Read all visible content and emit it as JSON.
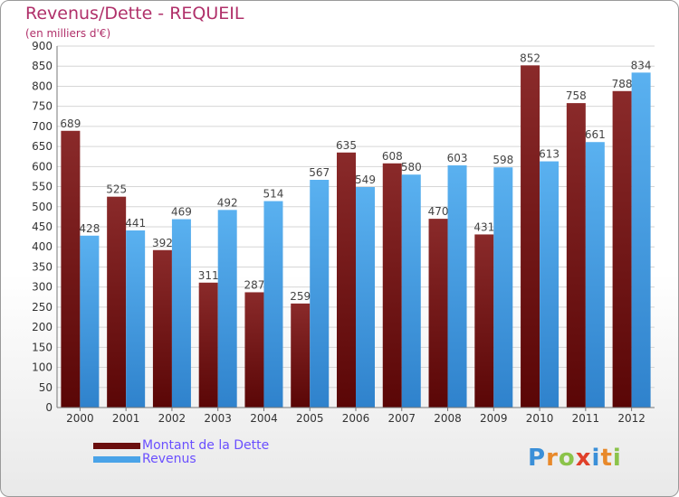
{
  "header": {
    "title": "Revenus/Dette - REQUEIL",
    "subtitle": "(en milliers d'€)"
  },
  "chart_data": {
    "type": "bar",
    "title": "Revenus/Dette - REQUEIL",
    "ylabel": "(en milliers d'€)",
    "xlabel": "",
    "ylim": [
      0,
      900
    ],
    "yticks": [
      0,
      50,
      100,
      150,
      200,
      250,
      300,
      350,
      400,
      450,
      500,
      550,
      600,
      650,
      700,
      750,
      800,
      850,
      900
    ],
    "grid": true,
    "categories": [
      "2000",
      "2001",
      "2002",
      "2003",
      "2004",
      "2005",
      "2006",
      "2007",
      "2008",
      "2009",
      "2010",
      "2011",
      "2012"
    ],
    "series": [
      {
        "name": "Montant de la Dette",
        "color": "#7a1a1a",
        "values": [
          689,
          525,
          392,
          311,
          287,
          259,
          635,
          608,
          470,
          431,
          852,
          758,
          788
        ]
      },
      {
        "name": "Revenus",
        "color": "#4aa3e8",
        "values": [
          428,
          441,
          469,
          492,
          514,
          567,
          549,
          580,
          603,
          598,
          613,
          661,
          834
        ]
      }
    ],
    "legend": [
      "Montant de la Dette",
      "Revenus"
    ],
    "legend_position": "bottom-left"
  },
  "logo": {
    "letters": [
      "P",
      "r",
      "o",
      "x",
      "i",
      "t",
      "i"
    ],
    "colors": [
      "#3a8fd8",
      "#e8892a",
      "#8bc34a",
      "#e0402a",
      "#3a8fd8",
      "#e8892a",
      "#8bc34a"
    ]
  }
}
